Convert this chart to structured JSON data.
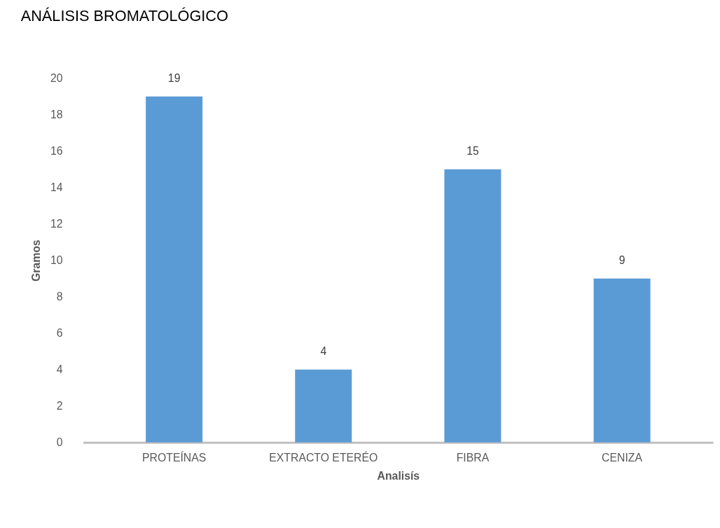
{
  "chart_data": {
    "type": "bar",
    "title": "ANÁLISIS BROMATOLÓGICO",
    "xlabel": "Analisís",
    "ylabel": "Gramos",
    "categories": [
      "PROTEÍNAS",
      "EXTRACTO ETERÉO",
      "FIBRA",
      "CENIZA"
    ],
    "values": [
      19,
      4,
      15,
      9
    ],
    "color": "#5b9bd5",
    "ylim": [
      0,
      20
    ],
    "yticks": [
      0,
      2,
      4,
      6,
      8,
      10,
      12,
      14,
      16,
      18,
      20
    ],
    "data_labels": true
  }
}
